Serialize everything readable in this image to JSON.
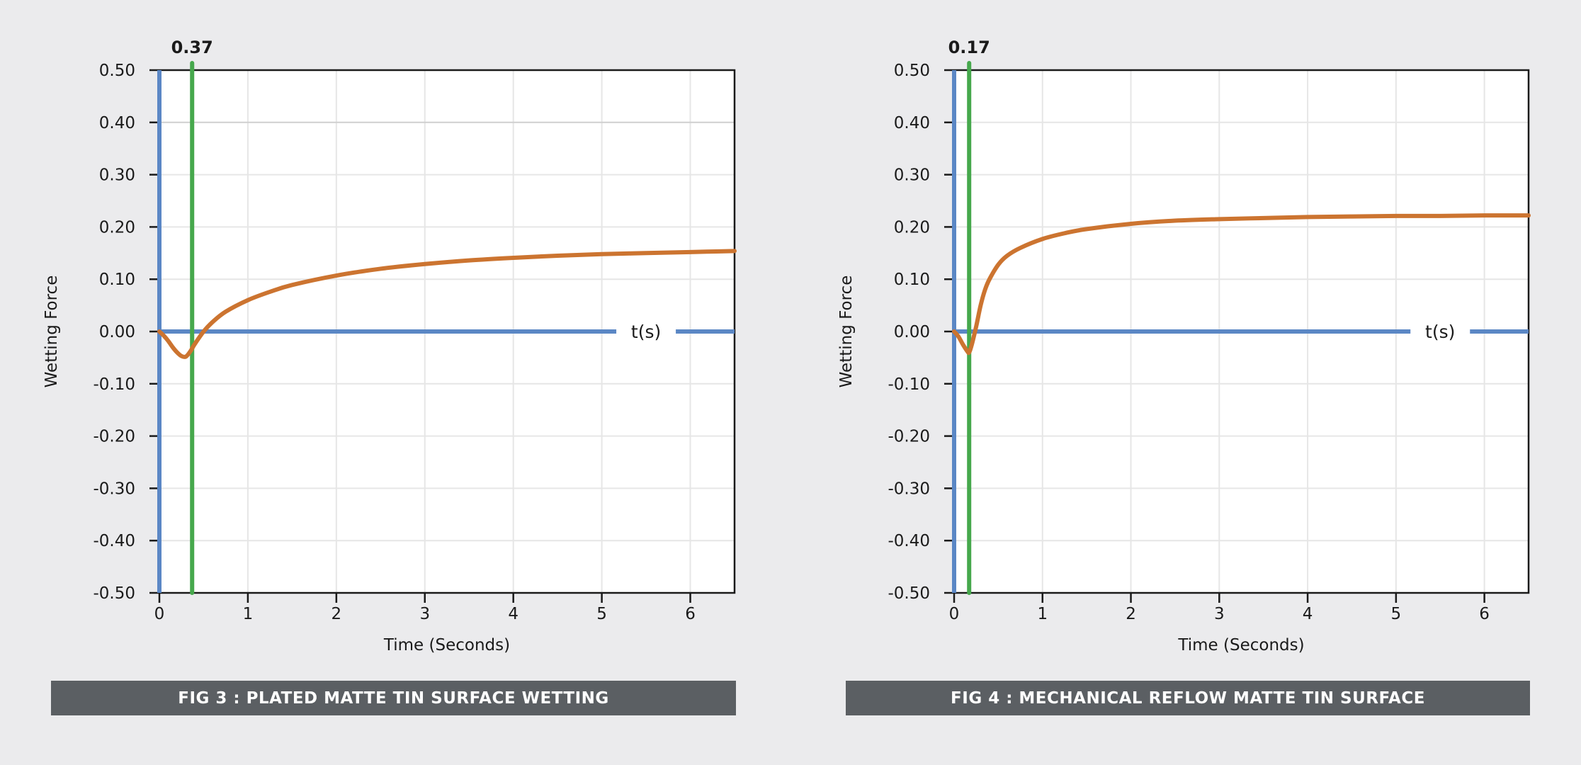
{
  "colors": {
    "background": "#ebebed",
    "plot_bg": "#ffffff",
    "grid": "#e6e6e6",
    "axis_blue": "#5b87c5",
    "marker_green": "#46a84c",
    "curve_orange": "#cc7430",
    "caption_bg": "#5b5f63"
  },
  "chart_data": [
    {
      "type": "line",
      "caption": "FIG 3 : PLATED MATTE TIN SURFACE WETTING",
      "xlabel": "Time (Seconds)",
      "ylabel": "Wetting Force",
      "xlim": [
        0,
        6.5
      ],
      "ylim": [
        -0.5,
        0.5
      ],
      "x_ticks": [
        0,
        1,
        2,
        3,
        4,
        5,
        6
      ],
      "x_tick_labels": [
        "0",
        "1",
        "2",
        "3",
        "4",
        "5",
        "6"
      ],
      "y_ticks": [
        0.5,
        0.4,
        0.3,
        0.2,
        0.1,
        0.0,
        -0.1,
        -0.2,
        -0.3,
        -0.4,
        -0.5
      ],
      "y_tick_labels": [
        "0.50",
        "0.40",
        "0.30",
        "0.20",
        "0.10",
        "0.00",
        "-0.10",
        "-0.20",
        "-0.30",
        "-0.40",
        "-0.50"
      ],
      "zero_axis_label": "t(s)",
      "marker": {
        "x": 0.37,
        "label": "0.37"
      },
      "grid": true,
      "series": [
        {
          "x": [
            0,
            0.05,
            0.1,
            0.15,
            0.2,
            0.25,
            0.3,
            0.35,
            0.4,
            0.5,
            0.6,
            0.75,
            1.0,
            1.25,
            1.5,
            2.0,
            2.5,
            3.0,
            3.5,
            4.0,
            4.5,
            5.0,
            5.5,
            6.0,
            6.5
          ],
          "values": [
            0,
            -0.008,
            -0.018,
            -0.03,
            -0.04,
            -0.047,
            -0.048,
            -0.038,
            -0.024,
            0.0,
            0.018,
            0.038,
            0.06,
            0.076,
            0.089,
            0.107,
            0.12,
            0.129,
            0.136,
            0.141,
            0.145,
            0.148,
            0.15,
            0.152,
            0.154
          ]
        }
      ]
    },
    {
      "type": "line",
      "caption": "FIG 4 : MECHANICAL REFLOW MATTE TIN SURFACE",
      "xlabel": "Time (Seconds)",
      "ylabel": "Wetting Force",
      "xlim": [
        0,
        6.5
      ],
      "ylim": [
        -0.5,
        0.5
      ],
      "x_ticks": [
        0,
        1,
        2,
        3,
        4,
        5,
        6
      ],
      "x_tick_labels": [
        "0",
        "1",
        "2",
        "3",
        "4",
        "5",
        "6"
      ],
      "y_ticks": [
        0.5,
        0.4,
        0.3,
        0.2,
        0.1,
        0.0,
        -0.1,
        -0.2,
        -0.3,
        -0.4,
        -0.5
      ],
      "y_tick_labels": [
        "0.50",
        "0.40",
        "0.30",
        "0.20",
        "0.10",
        "0.00",
        "-0.10",
        "-0.20",
        "-0.30",
        "-0.40",
        "-0.50"
      ],
      "zero_axis_label": "t(s)",
      "marker": {
        "x": 0.17,
        "label": "0.17"
      },
      "grid": true,
      "series": [
        {
          "x": [
            0,
            0.05,
            0.1,
            0.15,
            0.17,
            0.2,
            0.25,
            0.3,
            0.35,
            0.4,
            0.5,
            0.6,
            0.75,
            1.0,
            1.25,
            1.5,
            2.0,
            2.5,
            3.0,
            3.5,
            4.0,
            4.5,
            5.0,
            5.5,
            6.0,
            6.5
          ],
          "values": [
            0,
            -0.01,
            -0.025,
            -0.038,
            -0.04,
            -0.025,
            0.01,
            0.05,
            0.08,
            0.1,
            0.128,
            0.145,
            0.16,
            0.177,
            0.188,
            0.196,
            0.206,
            0.212,
            0.215,
            0.217,
            0.219,
            0.22,
            0.221,
            0.221,
            0.222,
            0.222
          ]
        }
      ]
    }
  ]
}
